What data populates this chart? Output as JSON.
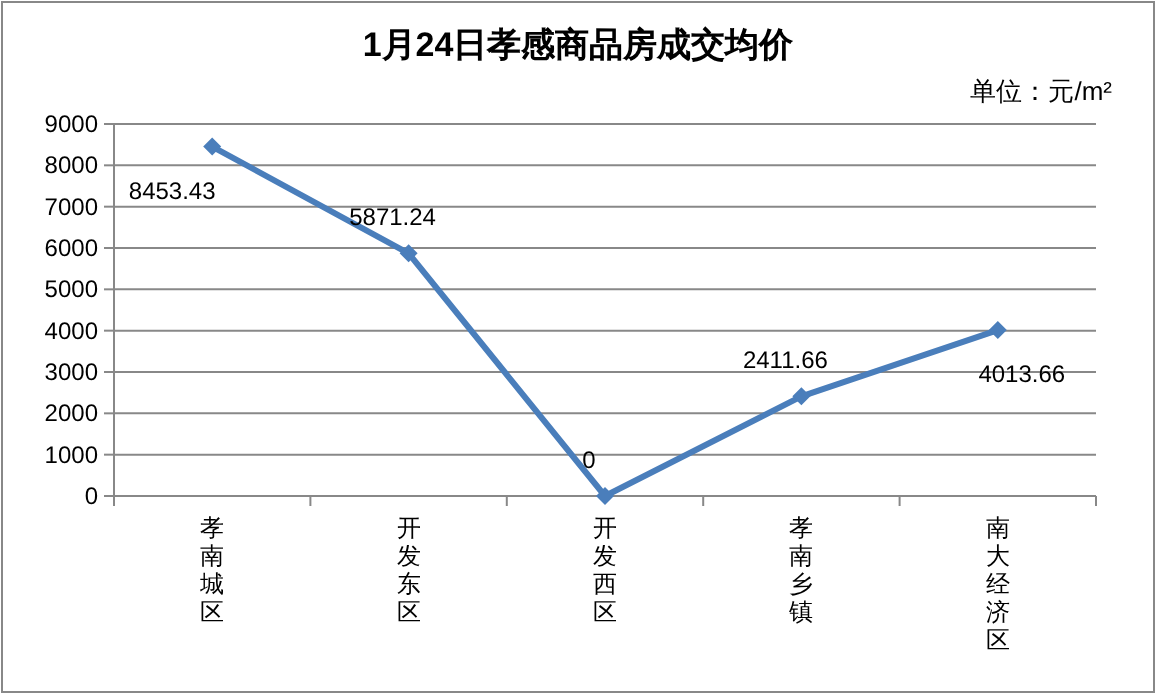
{
  "chart_data": {
    "type": "line",
    "title": "1月24日孝感商品房成交均价",
    "annotations": [
      "单位：元/m²"
    ],
    "categories": [
      "孝南城区",
      "开发东区",
      "开发西区",
      "孝南乡镇",
      "南大经济区"
    ],
    "series": [
      {
        "color": "#4a7ebb",
        "values": [
          8453.43,
          5871.24,
          0,
          2411.66,
          4013.66
        ]
      }
    ],
    "ylim": [
      0,
      9000
    ],
    "yticks": [
      0,
      1000,
      2000,
      3000,
      4000,
      5000,
      6000,
      7000,
      8000,
      9000
    ],
    "grid": "y",
    "marker": "diamond",
    "line_style": "solid",
    "data_labels": true
  }
}
